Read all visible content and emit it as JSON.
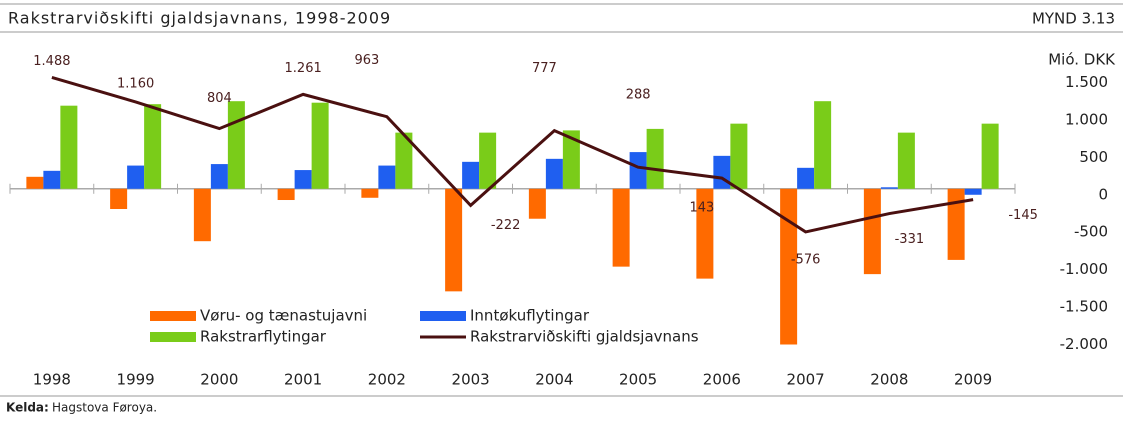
{
  "chart_data": {
    "type": "bar_line",
    "title": "Rakstrarviðskifti gjaldsjavnans, 1998-2009",
    "figure_label": "MYND 3.13",
    "y_axis_label": "Mió. DKK",
    "categories": [
      "1998",
      "1999",
      "2000",
      "2001",
      "2002",
      "2003",
      "2004",
      "2005",
      "2006",
      "2007",
      "2008",
      "2009"
    ],
    "series": [
      {
        "name": "Vøru- og tænastujavni",
        "color": "#ff6a00",
        "kind": "bar",
        "values": [
          160,
          -270,
          -700,
          -150,
          -120,
          -1370,
          -400,
          -1040,
          -1200,
          -2080,
          -1140,
          -950
        ]
      },
      {
        "name": "Inntøkuflytingar",
        "color": "#1f5ff0",
        "kind": "bar",
        "values": [
          240,
          310,
          330,
          250,
          310,
          360,
          400,
          490,
          440,
          280,
          20,
          -80
        ]
      },
      {
        "name": "Rakstrarflytingar",
        "color": "#7acc19",
        "kind": "bar",
        "values": [
          1110,
          1130,
          1170,
          1150,
          750,
          750,
          780,
          800,
          870,
          1170,
          750,
          870
        ]
      },
      {
        "name": "Rakstrarviðskifti gjaldsjavnans",
        "color": "#4a1010",
        "kind": "line",
        "values": [
          1488,
          1160,
          804,
          1261,
          963,
          -222,
          777,
          288,
          143,
          -576,
          -331,
          -145
        ],
        "value_labels": [
          "1.488",
          "1.160",
          "804",
          "1.261",
          "963",
          "-222",
          "777",
          "288",
          "143",
          "-576",
          "-331",
          "-145"
        ]
      }
    ],
    "ylim": [
      -2100,
      1600
    ],
    "yticks": [
      {
        "value": 1500,
        "label": "1.500"
      },
      {
        "value": 1000,
        "label": "1.000"
      },
      500,
      0,
      -500,
      {
        "value": -1000,
        "label": "-1.000"
      },
      {
        "value": -1500,
        "label": "-1.500"
      },
      {
        "value": -2000,
        "label": "-2.000"
      }
    ],
    "source_label": "Kelda:",
    "source": "Hagstova Føroya."
  }
}
